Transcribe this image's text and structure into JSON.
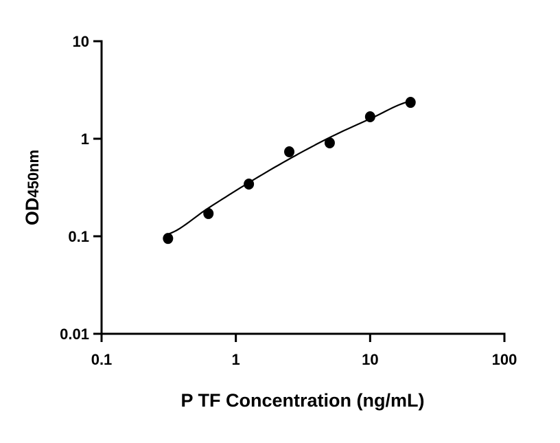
{
  "chart_data": {
    "type": "scatter",
    "title": "",
    "xlabel": "P TF Concentration (ng/mL)",
    "ylabel_main": "OD",
    "ylabel_sub": "450nm",
    "x_scale": "log",
    "y_scale": "log",
    "xlim": [
      0.1,
      100
    ],
    "ylim": [
      0.01,
      10
    ],
    "x_ticks": [
      "0.1",
      "1",
      "10",
      "100"
    ],
    "y_ticks": [
      "0.01",
      "0.1",
      "1",
      "10"
    ],
    "grid": false,
    "legend": "none",
    "series": [
      {
        "x": [
          0.3125,
          0.625,
          1.25,
          2.5,
          5,
          10,
          20
        ],
        "y": [
          0.095,
          0.171,
          0.343,
          0.735,
          0.907,
          1.68,
          2.36
        ],
        "marker_color": "#000000"
      }
    ],
    "fit_curve": {
      "x": [
        0.3125,
        0.625,
        1.25,
        2.5,
        5,
        10,
        20
      ],
      "y": [
        0.105,
        0.195,
        0.355,
        0.62,
        1.03,
        1.6,
        2.43
      ],
      "color": "#000000"
    }
  }
}
